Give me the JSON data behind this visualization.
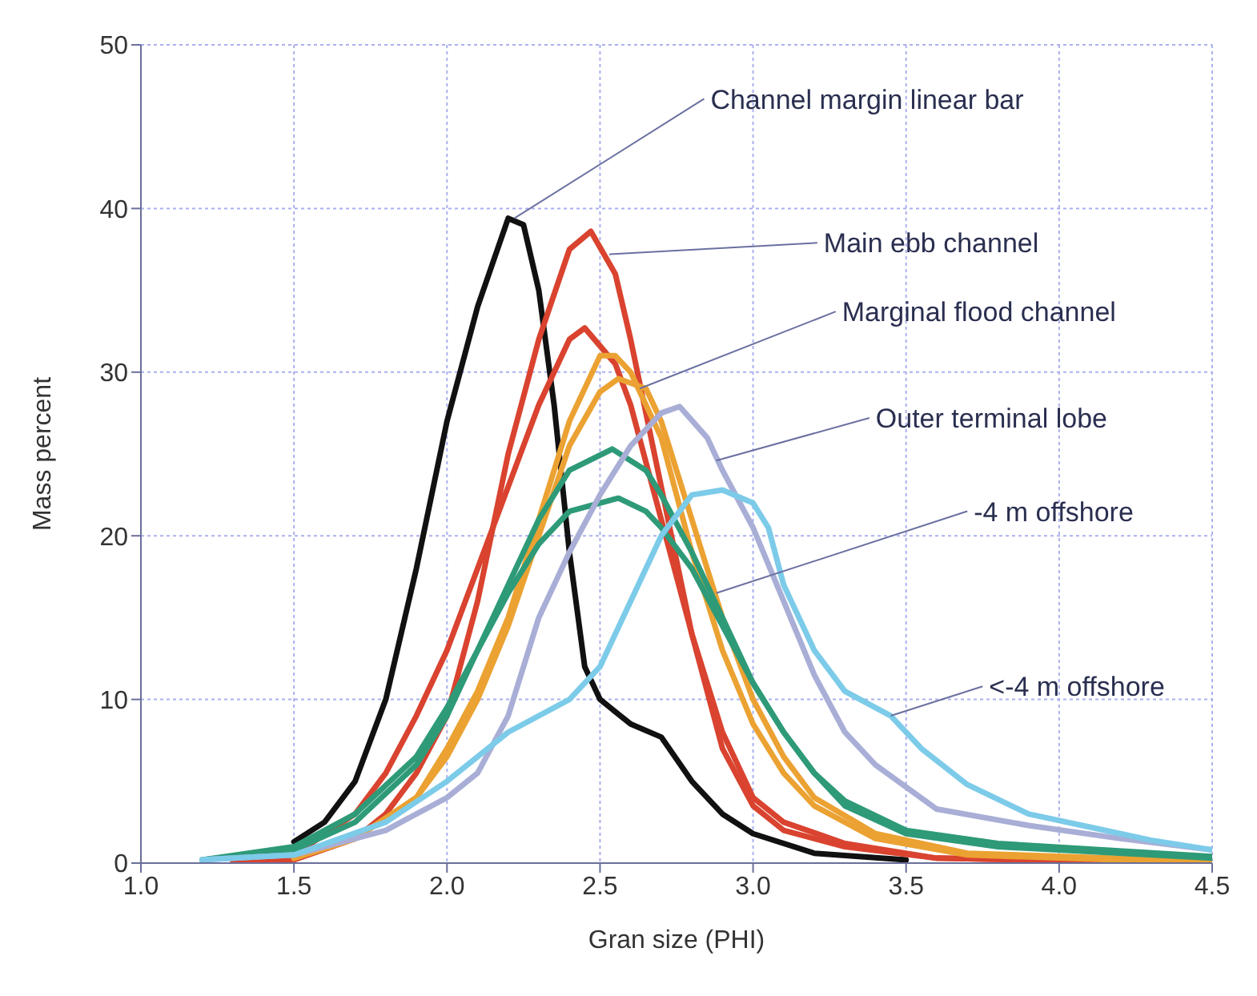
{
  "chart_data": {
    "type": "line",
    "xlabel": "Gran size (PHI)",
    "ylabel": "Mass percent",
    "xlim": [
      1.0,
      4.5
    ],
    "xticks": [
      {
        "value": 1,
        "label": "1.0"
      },
      1.5,
      {
        "value": 2,
        "label": "2.0"
      },
      2.5,
      {
        "value": 3,
        "label": "3.0"
      },
      3.5,
      {
        "value": 4,
        "label": "4.0"
      },
      4.5
    ],
    "ylim": [
      0,
      50
    ],
    "yticks": [
      0,
      10,
      20,
      30,
      40,
      50
    ],
    "grid": true,
    "marker": "none",
    "line_style": "solid",
    "annotations": [
      {
        "text": "Channel margin linear bar",
        "x": 2.22,
        "y": 39.4
      },
      {
        "text": "Main ebb channel",
        "x": 2.53,
        "y": 37.2
      },
      {
        "text": "Marginal flood channel",
        "x": 2.63,
        "y": 29
      },
      {
        "text": "Outer terminal lobe",
        "x": 2.88,
        "y": 24.6
      },
      {
        "text": "-4 m offshore",
        "x": 2.88,
        "y": 16.5
      },
      {
        "text": "<-4 m offshore",
        "x": 3.45,
        "y": 9
      }
    ],
    "series": [
      {
        "color": "#111111",
        "x": [
          1.5,
          1.6,
          1.7,
          1.8,
          1.9,
          2.0,
          2.1,
          2.2,
          2.25,
          2.3,
          2.35,
          2.4,
          2.45,
          2.5,
          2.6,
          2.7,
          2.8,
          2.9,
          3.0,
          3.2,
          3.5
        ],
        "values": [
          1.3,
          2.5,
          5,
          10,
          18,
          27,
          34,
          39.4,
          39,
          35,
          28,
          19,
          12,
          10,
          8.5,
          7.7,
          5,
          3,
          1.8,
          0.6,
          0.2
        ]
      },
      {
        "color": "#d9432f",
        "x": [
          1.3,
          1.5,
          1.7,
          1.8,
          1.9,
          2.0,
          2.1,
          2.2,
          2.3,
          2.4,
          2.47,
          2.55,
          2.6,
          2.7,
          2.8,
          2.9,
          3.0,
          3.1,
          3.3,
          3.6,
          4.5
        ],
        "values": [
          0,
          0.2,
          1.5,
          3,
          5.5,
          9,
          16,
          25,
          32,
          37.5,
          38.6,
          36,
          32,
          23,
          14,
          7,
          3.5,
          2,
          1,
          0.3,
          0
        ]
      },
      {
        "color": "#d9432f",
        "x": [
          1.3,
          1.5,
          1.7,
          1.8,
          1.9,
          2.0,
          2.1,
          2.2,
          2.3,
          2.4,
          2.45,
          2.55,
          2.6,
          2.7,
          2.8,
          2.9,
          3.0,
          3.1,
          3.3,
          3.6,
          4.5
        ],
        "values": [
          0,
          0.5,
          3,
          5.5,
          9,
          13,
          18,
          23,
          28,
          32,
          32.7,
          30.5,
          28,
          21,
          14,
          8,
          4,
          2.5,
          1.2,
          0.3,
          0
        ]
      },
      {
        "color": "#eba232",
        "x": [
          1.5,
          1.7,
          1.9,
          2.0,
          2.1,
          2.2,
          2.3,
          2.4,
          2.5,
          2.55,
          2.6,
          2.7,
          2.8,
          2.9,
          3.0,
          3.1,
          3.2,
          3.4,
          3.7,
          4.5
        ],
        "values": [
          0.3,
          1.5,
          4,
          7,
          10.5,
          15,
          21,
          27,
          31,
          31,
          30,
          26,
          19,
          13,
          8.5,
          5.5,
          3.5,
          1.5,
          0.5,
          0
        ]
      },
      {
        "color": "#eba232",
        "x": [
          1.5,
          1.7,
          1.9,
          2.0,
          2.1,
          2.2,
          2.3,
          2.4,
          2.5,
          2.56,
          2.65,
          2.7,
          2.8,
          2.9,
          3.0,
          3.1,
          3.2,
          3.4,
          3.7,
          4.5
        ],
        "values": [
          0.3,
          1.5,
          4,
          6.5,
          10,
          14.5,
          20,
          25.5,
          28.8,
          29.6,
          29,
          27,
          21,
          15,
          10,
          6.5,
          4,
          1.8,
          0.6,
          0.1
        ]
      },
      {
        "color": "#2e9a78",
        "x": [
          1.2,
          1.5,
          1.7,
          1.9,
          2.0,
          2.1,
          2.2,
          2.3,
          2.4,
          2.54,
          2.65,
          2.7,
          2.8,
          2.9,
          3.0,
          3.1,
          3.2,
          3.3,
          3.5,
          3.8,
          4.5
        ],
        "values": [
          0.2,
          0.8,
          2.5,
          6,
          9,
          13,
          17,
          21,
          24,
          25.3,
          24,
          22.5,
          19,
          15,
          11,
          8,
          5.5,
          3.5,
          1.8,
          1,
          0.3
        ]
      },
      {
        "color": "#2e9a78",
        "x": [
          1.2,
          1.5,
          1.7,
          1.9,
          2.0,
          2.1,
          2.2,
          2.3,
          2.4,
          2.56,
          2.65,
          2.7,
          2.8,
          2.9,
          3.0,
          3.1,
          3.2,
          3.3,
          3.5,
          3.8,
          4.5
        ],
        "values": [
          0.2,
          1,
          3,
          6.5,
          9.5,
          13,
          16.5,
          19.5,
          21.5,
          22.3,
          21.5,
          20.5,
          18,
          14.5,
          11,
          8,
          5.5,
          3.8,
          2,
          1.2,
          0.4
        ]
      },
      {
        "color": "#a9aed6",
        "x": [
          1.2,
          1.5,
          1.8,
          2.0,
          2.1,
          2.2,
          2.3,
          2.4,
          2.5,
          2.6,
          2.7,
          2.76,
          2.85,
          2.9,
          3.0,
          3.1,
          3.2,
          3.3,
          3.4,
          3.6,
          3.9,
          4.2,
          4.5
        ],
        "values": [
          0.2,
          0.5,
          2,
          4,
          5.5,
          9,
          15,
          19,
          22.5,
          25.5,
          27.5,
          27.9,
          26,
          24,
          20.5,
          16,
          11.5,
          8,
          6,
          3.3,
          2.3,
          1.5,
          0.8
        ]
      },
      {
        "color": "#7ccbe9",
        "x": [
          1.2,
          1.5,
          1.8,
          2.0,
          2.2,
          2.4,
          2.5,
          2.6,
          2.7,
          2.8,
          2.9,
          3.0,
          3.05,
          3.1,
          3.2,
          3.3,
          3.45,
          3.55,
          3.7,
          3.9,
          4.1,
          4.3,
          4.5
        ],
        "values": [
          0.2,
          0.5,
          2.5,
          5,
          8,
          10,
          12,
          16,
          20,
          22.5,
          22.8,
          22,
          20.5,
          17,
          13,
          10.5,
          9,
          7,
          4.8,
          3,
          2.2,
          1.4,
          0.8
        ]
      }
    ]
  }
}
